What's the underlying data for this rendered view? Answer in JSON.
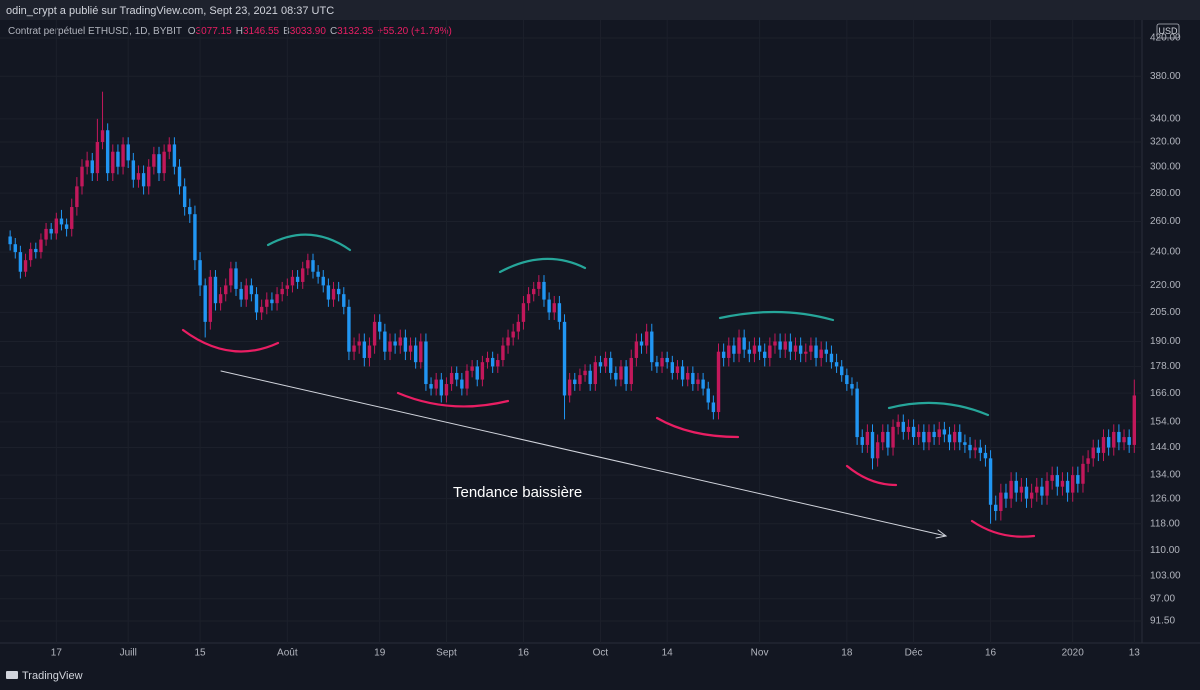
{
  "header": {
    "publisher": "odin_crypt a  publié sur TradingView.com, Sept 23, 2021 08:37 UTC"
  },
  "legend": {
    "symbol": "Contrat perpétuel ETHUSD, 1D, BYBIT",
    "fields": [
      {
        "key": "O",
        "value": "3077.15"
      },
      {
        "key": "H",
        "value": "3146.55"
      },
      {
        "key": "B",
        "value": "3033.90"
      },
      {
        "key": "C",
        "value": "3132.35"
      }
    ],
    "change": "+55.20 (+1.79%)"
  },
  "currency": "USD",
  "annotation": "Tendance baissière",
  "footer": "TradingView",
  "chart_data": {
    "type": "candlestick",
    "log_scale": true,
    "grid": true,
    "up_color": "#c2185b",
    "down_color": "#2196f3",
    "ylim": [
      86.4,
      431.1
    ],
    "yticks": [
      {
        "value": 420,
        "label": "420.00"
      },
      {
        "value": 380,
        "label": "380.00"
      },
      {
        "value": 340,
        "label": "340.00"
      },
      {
        "value": 320,
        "label": "320.00"
      },
      {
        "value": 300,
        "label": "300.00"
      },
      {
        "value": 280,
        "label": "280.00"
      },
      {
        "value": 260,
        "label": "260.00"
      },
      {
        "value": 240,
        "label": "240.00"
      },
      {
        "value": 220,
        "label": "220.00"
      },
      {
        "value": 205,
        "label": "205.00"
      },
      {
        "value": 190,
        "label": "190.00"
      },
      {
        "value": 178,
        "label": "178.00"
      },
      {
        "value": 166,
        "label": "166.00"
      },
      {
        "value": 154,
        "label": "154.00"
      },
      {
        "value": 144,
        "label": "144.00"
      },
      {
        "value": 134,
        "label": "134.00"
      },
      {
        "value": 126,
        "label": "126.00"
      },
      {
        "value": 118,
        "label": "118.00"
      },
      {
        "value": 110,
        "label": "110.00"
      },
      {
        "value": 103,
        "label": "103.00"
      },
      {
        "value": 97,
        "label": "97.00"
      },
      {
        "value": 91.5,
        "label": "91.50"
      }
    ],
    "xlim": [
      -1,
      220.5
    ],
    "xticks": [
      {
        "value": 9,
        "label": "17"
      },
      {
        "value": 23,
        "label": "Juill"
      },
      {
        "value": 37,
        "label": "15"
      },
      {
        "value": 54,
        "label": "Août"
      },
      {
        "value": 72,
        "label": "19"
      },
      {
        "value": 85,
        "label": "Sept"
      },
      {
        "value": 100,
        "label": "16"
      },
      {
        "value": 115,
        "label": "Oct"
      },
      {
        "value": 128,
        "label": "14"
      },
      {
        "value": 146,
        "label": "Nov"
      },
      {
        "value": 163,
        "label": "18"
      },
      {
        "value": 176,
        "label": "Déc"
      },
      {
        "value": 191,
        "label": "16"
      },
      {
        "value": 207,
        "label": "2020"
      },
      {
        "value": 219,
        "label": "13"
      }
    ],
    "candles": [
      [
        250,
        254,
        241,
        245
      ],
      [
        245,
        249,
        236,
        240
      ],
      [
        240,
        244,
        224,
        228
      ],
      [
        228,
        239,
        225,
        235
      ],
      [
        235,
        246,
        231,
        242
      ],
      [
        242,
        246,
        236,
        240
      ],
      [
        240,
        252,
        236,
        248
      ],
      [
        248,
        259,
        244,
        255
      ],
      [
        255,
        259,
        248,
        252
      ],
      [
        252,
        266,
        248,
        262
      ],
      [
        262,
        268,
        254,
        258
      ],
      [
        258,
        262,
        250,
        255
      ],
      [
        255,
        276,
        250,
        270
      ],
      [
        270,
        292,
        264,
        285
      ],
      [
        285,
        306,
        279,
        300
      ],
      [
        300,
        312,
        294,
        305
      ],
      [
        305,
        311,
        289,
        295
      ],
      [
        295,
        340,
        289,
        320
      ],
      [
        320,
        365,
        314,
        330
      ],
      [
        330,
        336,
        289,
        295
      ],
      [
        295,
        318,
        289,
        312
      ],
      [
        312,
        318,
        294,
        300
      ],
      [
        300,
        324,
        294,
        318
      ],
      [
        318,
        324,
        299,
        305
      ],
      [
        305,
        311,
        284,
        290
      ],
      [
        290,
        301,
        284,
        295
      ],
      [
        295,
        301,
        279,
        285
      ],
      [
        285,
        306,
        279,
        300
      ],
      [
        300,
        316,
        294,
        310
      ],
      [
        310,
        316,
        289,
        295
      ],
      [
        295,
        318,
        289,
        312
      ],
      [
        312,
        324,
        306,
        318
      ],
      [
        318,
        324,
        294,
        300
      ],
      [
        300,
        306,
        279,
        285
      ],
      [
        285,
        291,
        264,
        270
      ],
      [
        270,
        276,
        259,
        265
      ],
      [
        265,
        271,
        229,
        235
      ],
      [
        235,
        240,
        214,
        220
      ],
      [
        220,
        224,
        192,
        200
      ],
      [
        200,
        229,
        196,
        225
      ],
      [
        225,
        229,
        206,
        210
      ],
      [
        210,
        219,
        206,
        215
      ],
      [
        215,
        224,
        211,
        220
      ],
      [
        220,
        234,
        216,
        230
      ],
      [
        230,
        234,
        214,
        218
      ],
      [
        218,
        222,
        208,
        212
      ],
      [
        212,
        224,
        208,
        220
      ],
      [
        220,
        224,
        211,
        215
      ],
      [
        215,
        219,
        201,
        205
      ],
      [
        205,
        212,
        201,
        208
      ],
      [
        208,
        216,
        204,
        212
      ],
      [
        212,
        216,
        206,
        210
      ],
      [
        210,
        219,
        206,
        215
      ],
      [
        215,
        222,
        211,
        218
      ],
      [
        218,
        224,
        214,
        220
      ],
      [
        220,
        229,
        216,
        225
      ],
      [
        225,
        229,
        218,
        222
      ],
      [
        222,
        234,
        218,
        230
      ],
      [
        230,
        239,
        226,
        235
      ],
      [
        235,
        239,
        224,
        228
      ],
      [
        228,
        232,
        221,
        225
      ],
      [
        225,
        229,
        216,
        220
      ],
      [
        220,
        224,
        208,
        212
      ],
      [
        212,
        222,
        208,
        218
      ],
      [
        218,
        222,
        211,
        215
      ],
      [
        215,
        219,
        204,
        208
      ],
      [
        208,
        212,
        181,
        185
      ],
      [
        185,
        192,
        181,
        188
      ],
      [
        188,
        194,
        184,
        190
      ],
      [
        190,
        194,
        178,
        182
      ],
      [
        182,
        192,
        178,
        188
      ],
      [
        188,
        204,
        184,
        200
      ],
      [
        200,
        204,
        191,
        195
      ],
      [
        195,
        199,
        181,
        185
      ],
      [
        185,
        194,
        181,
        190
      ],
      [
        190,
        194,
        184,
        188
      ],
      [
        188,
        196,
        184,
        192
      ],
      [
        192,
        196,
        181,
        185
      ],
      [
        185,
        192,
        181,
        188
      ],
      [
        188,
        192,
        177,
        180
      ],
      [
        180,
        194,
        177,
        190
      ],
      [
        190,
        194,
        167,
        170
      ],
      [
        170,
        173,
        165,
        168
      ],
      [
        168,
        175,
        165,
        172
      ],
      [
        172,
        175,
        162,
        165
      ],
      [
        165,
        173,
        162,
        170
      ],
      [
        170,
        178,
        167,
        175
      ],
      [
        175,
        178,
        169,
        172
      ],
      [
        172,
        175,
        165,
        168
      ],
      [
        168,
        179,
        165,
        176
      ],
      [
        176,
        181,
        173,
        178
      ],
      [
        178,
        181,
        169,
        172
      ],
      [
        172,
        183,
        169,
        180
      ],
      [
        180,
        185,
        177,
        182
      ],
      [
        182,
        185,
        175,
        178
      ],
      [
        178,
        184,
        175,
        181
      ],
      [
        181,
        192,
        178,
        188
      ],
      [
        188,
        196,
        184,
        192
      ],
      [
        192,
        199,
        188,
        195
      ],
      [
        195,
        204,
        191,
        200
      ],
      [
        200,
        214,
        196,
        210
      ],
      [
        210,
        219,
        206,
        215
      ],
      [
        215,
        222,
        211,
        218
      ],
      [
        218,
        226,
        214,
        222
      ],
      [
        222,
        226,
        208,
        212
      ],
      [
        212,
        216,
        201,
        205
      ],
      [
        205,
        214,
        201,
        210
      ],
      [
        210,
        214,
        196,
        200
      ],
      [
        200,
        204,
        155,
        165
      ],
      [
        165,
        175,
        162,
        172
      ],
      [
        172,
        175,
        167,
        170
      ],
      [
        170,
        177,
        167,
        174
      ],
      [
        174,
        179,
        171,
        176
      ],
      [
        176,
        179,
        167,
        170
      ],
      [
        170,
        183,
        167,
        180
      ],
      [
        180,
        183,
        175,
        178
      ],
      [
        178,
        185,
        175,
        182
      ],
      [
        182,
        185,
        172,
        175
      ],
      [
        175,
        178,
        169,
        172
      ],
      [
        172,
        181,
        169,
        178
      ],
      [
        178,
        181,
        167,
        170
      ],
      [
        170,
        186,
        167,
        182
      ],
      [
        182,
        194,
        178,
        190
      ],
      [
        190,
        194,
        184,
        188
      ],
      [
        188,
        199,
        184,
        195
      ],
      [
        195,
        199,
        176,
        180
      ],
      [
        180,
        183,
        175,
        178
      ],
      [
        178,
        185,
        175,
        182
      ],
      [
        182,
        185,
        177,
        180
      ],
      [
        180,
        183,
        172,
        175
      ],
      [
        175,
        181,
        172,
        178
      ],
      [
        178,
        181,
        169,
        172
      ],
      [
        172,
        178,
        169,
        175
      ],
      [
        175,
        178,
        167,
        170
      ],
      [
        170,
        175,
        167,
        172
      ],
      [
        172,
        175,
        165,
        168
      ],
      [
        168,
        171,
        159,
        162
      ],
      [
        162,
        165,
        155,
        158
      ],
      [
        158,
        189,
        155,
        185
      ],
      [
        185,
        189,
        178,
        182
      ],
      [
        182,
        192,
        178,
        188
      ],
      [
        188,
        192,
        180,
        184
      ],
      [
        184,
        196,
        180,
        192
      ],
      [
        192,
        196,
        182,
        186
      ],
      [
        186,
        190,
        180,
        184
      ],
      [
        184,
        192,
        180,
        188
      ],
      [
        188,
        192,
        181,
        185
      ],
      [
        185,
        189,
        178,
        182
      ],
      [
        182,
        192,
        178,
        188
      ],
      [
        188,
        194,
        184,
        190
      ],
      [
        190,
        194,
        182,
        186
      ],
      [
        186,
        194,
        182,
        190
      ],
      [
        190,
        194,
        181,
        185
      ],
      [
        185,
        192,
        181,
        188
      ],
      [
        188,
        192,
        180,
        184
      ],
      [
        184,
        189,
        180,
        185
      ],
      [
        185,
        192,
        181,
        188
      ],
      [
        188,
        192,
        178,
        182
      ],
      [
        182,
        190,
        178,
        186
      ],
      [
        186,
        190,
        180,
        184
      ],
      [
        184,
        188,
        177,
        180
      ],
      [
        180,
        184,
        175,
        178
      ],
      [
        178,
        181,
        171,
        174
      ],
      [
        174,
        177,
        167,
        170
      ],
      [
        170,
        173,
        165,
        168
      ],
      [
        168,
        171,
        145,
        148
      ],
      [
        148,
        151,
        142,
        145
      ],
      [
        145,
        153,
        142,
        150
      ],
      [
        150,
        153,
        136,
        140
      ],
      [
        140,
        149,
        137,
        146
      ],
      [
        146,
        153,
        143,
        150
      ],
      [
        150,
        153,
        141,
        144
      ],
      [
        144,
        155,
        141,
        152
      ],
      [
        152,
        157,
        149,
        154
      ],
      [
        154,
        157,
        147,
        150
      ],
      [
        150,
        155,
        147,
        152
      ],
      [
        152,
        155,
        145,
        148
      ],
      [
        148,
        153,
        145,
        150
      ],
      [
        150,
        153,
        143,
        146
      ],
      [
        146,
        153,
        143,
        150
      ],
      [
        150,
        153,
        145,
        148
      ],
      [
        148,
        154,
        145,
        151
      ],
      [
        151,
        154,
        146,
        149
      ],
      [
        149,
        152,
        143,
        146
      ],
      [
        146,
        153,
        143,
        150
      ],
      [
        150,
        153,
        143,
        146
      ],
      [
        146,
        149,
        142,
        145
      ],
      [
        145,
        148,
        140,
        143
      ],
      [
        143,
        147,
        140,
        144
      ],
      [
        144,
        147,
        139,
        142
      ],
      [
        142,
        145,
        137,
        140
      ],
      [
        140,
        143,
        118,
        124
      ],
      [
        124,
        127,
        119,
        122
      ],
      [
        122,
        131,
        119,
        128
      ],
      [
        128,
        131,
        123,
        126
      ],
      [
        126,
        135,
        123,
        132
      ],
      [
        132,
        135,
        125,
        128
      ],
      [
        128,
        133,
        125,
        130
      ],
      [
        130,
        133,
        123,
        126
      ],
      [
        126,
        131,
        123,
        128
      ],
      [
        128,
        133,
        125,
        130
      ],
      [
        130,
        133,
        124,
        127
      ],
      [
        127,
        135,
        124,
        132
      ],
      [
        132,
        137,
        129,
        134
      ],
      [
        134,
        137,
        127,
        130
      ],
      [
        130,
        135,
        127,
        132
      ],
      [
        132,
        135,
        125,
        128
      ],
      [
        128,
        137,
        125,
        134
      ],
      [
        134,
        137,
        128,
        131
      ],
      [
        131,
        141,
        128,
        138
      ],
      [
        138,
        143,
        135,
        140
      ],
      [
        140,
        147,
        137,
        144
      ],
      [
        144,
        147,
        139,
        142
      ],
      [
        142,
        151,
        139,
        148
      ],
      [
        148,
        151,
        141,
        144
      ],
      [
        144,
        153,
        141,
        150
      ],
      [
        150,
        153,
        143,
        146
      ],
      [
        146,
        151,
        143,
        148
      ],
      [
        148,
        151,
        142,
        145
      ],
      [
        145,
        172,
        142,
        165
      ]
    ]
  }
}
